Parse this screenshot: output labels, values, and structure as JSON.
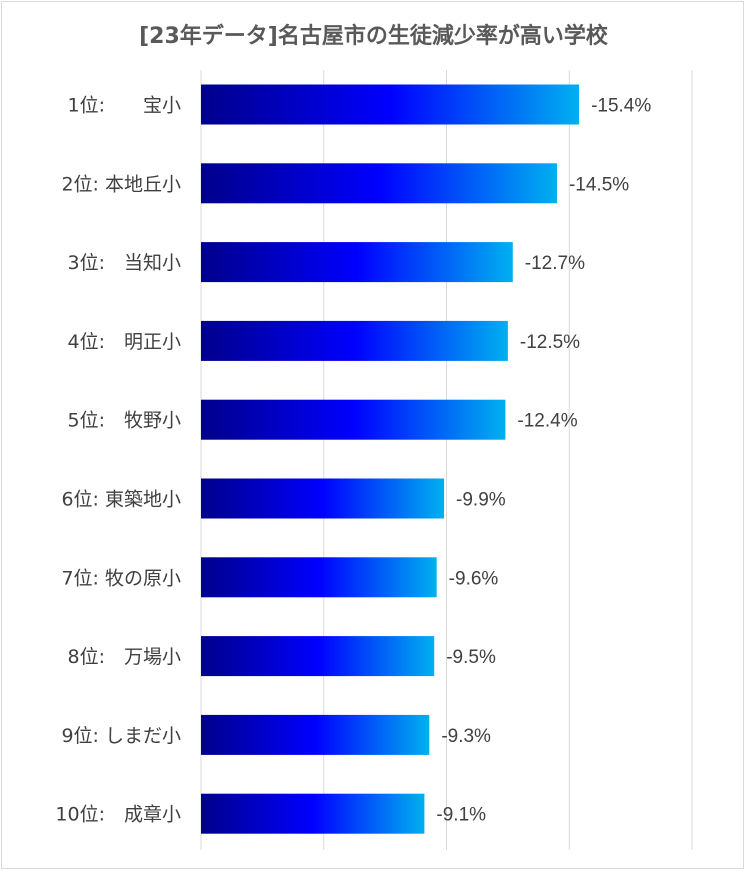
{
  "chart_data": {
    "type": "bar",
    "orientation": "horizontal",
    "title": "[23年データ]名古屋市の生徒減少率が高い学校",
    "categories": [
      "1位:　　宝小",
      "2位: 本地丘小",
      "3位:　当知小",
      "4位:　明正小",
      "5位:　牧野小",
      "6位: 東築地小",
      "7位: 牧の原小",
      "8位:　万場小",
      "9位: しまだ小",
      "10位:　成章小"
    ],
    "values": [
      -15.4,
      -14.5,
      -12.7,
      -12.5,
      -12.4,
      -9.9,
      -9.6,
      -9.5,
      -9.3,
      -9.1
    ],
    "value_labels": [
      "-15.4%",
      "-14.5%",
      "-12.7%",
      "-12.5%",
      "-12.4%",
      "-9.9%",
      "-9.6%",
      "-9.5%",
      "-9.3%",
      "-9.1%"
    ],
    "xlim": [
      0,
      -20
    ],
    "gridlines": [
      0,
      -5,
      -10,
      -15,
      -20
    ],
    "grid": true,
    "legend": "none",
    "colors": {
      "bar_start": "#00008b",
      "bar_mid": "#0000ff",
      "bar_end": "#00b0f0",
      "grid": "#d9d9d9",
      "text": "#404040",
      "title": "#595959"
    }
  }
}
